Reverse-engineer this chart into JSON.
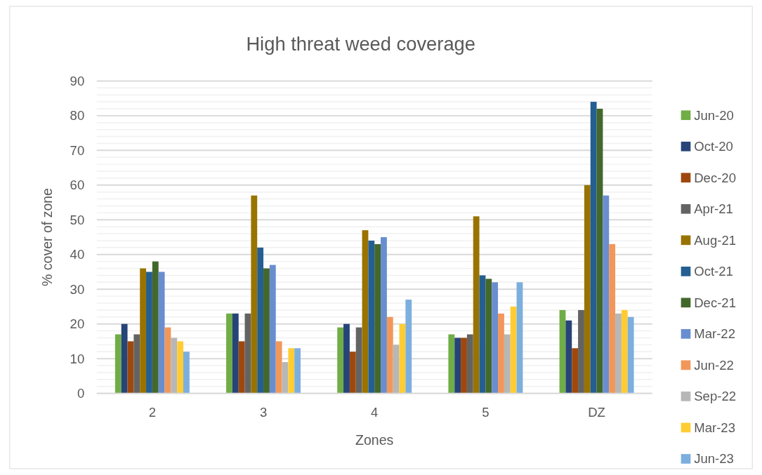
{
  "chart_data": {
    "type": "bar",
    "title": "High threat weed coverage",
    "xlabel": "Zones",
    "ylabel": "% cover of zone",
    "categories": [
      "2",
      "3",
      "4",
      "5",
      "DZ"
    ],
    "series": [
      {
        "name": "Jun-20",
        "color": "#70ad47",
        "values": [
          17,
          23,
          19,
          17,
          24
        ]
      },
      {
        "name": "Oct-20",
        "color": "#264478",
        "values": [
          20,
          23,
          20,
          16,
          21
        ]
      },
      {
        "name": "Dec-20",
        "color": "#9e480e",
        "values": [
          15,
          15,
          12,
          16,
          13
        ]
      },
      {
        "name": "Apr-21",
        "color": "#636363",
        "values": [
          17,
          23,
          19,
          17,
          24
        ]
      },
      {
        "name": "Aug-21",
        "color": "#997300",
        "values": [
          36,
          57,
          47,
          51,
          60
        ]
      },
      {
        "name": "Oct-21",
        "color": "#255e91",
        "values": [
          35,
          42,
          44,
          34,
          84
        ]
      },
      {
        "name": "Dec-21",
        "color": "#43682b",
        "values": [
          38,
          36,
          43,
          33,
          82
        ]
      },
      {
        "name": "Mar-22",
        "color": "#698ed0",
        "values": [
          35,
          37,
          45,
          32,
          57
        ]
      },
      {
        "name": "Jun-22",
        "color": "#f1975a",
        "values": [
          19,
          15,
          22,
          23,
          43
        ]
      },
      {
        "name": "Sep-22",
        "color": "#b7b7b7",
        "values": [
          16,
          9,
          14,
          17,
          23
        ]
      },
      {
        "name": "Mar-23",
        "color": "#ffcd33",
        "values": [
          15,
          13,
          20,
          25,
          24
        ]
      },
      {
        "name": "Jun-23",
        "color": "#7cafdd",
        "values": [
          12,
          13,
          27,
          32,
          22
        ]
      }
    ],
    "ylim": [
      0,
      90
    ],
    "yticks": [
      0,
      {
        "value": 2,
        "label": null
      },
      {
        "value": 4,
        "label": null
      },
      {
        "value": 6,
        "label": null
      },
      {
        "value": 8,
        "label": null
      },
      10,
      {
        "value": 12,
        "label": null
      },
      {
        "value": 14,
        "label": null
      },
      {
        "value": 16,
        "label": null
      },
      {
        "value": 18,
        "label": null
      },
      20,
      {
        "value": 22,
        "label": null
      },
      {
        "value": 24,
        "label": null
      },
      {
        "value": 26,
        "label": null
      },
      {
        "value": 28,
        "label": null
      },
      30,
      {
        "value": 32,
        "label": null
      },
      {
        "value": 34,
        "label": null
      },
      {
        "value": 36,
        "label": null
      },
      {
        "value": 38,
        "label": null
      },
      40,
      {
        "value": 42,
        "label": null
      },
      {
        "value": 44,
        "label": null
      },
      {
        "value": 46,
        "label": null
      },
      {
        "value": 48,
        "label": null
      },
      50,
      {
        "value": 52,
        "label": null
      },
      {
        "value": 54,
        "label": null
      },
      {
        "value": 56,
        "label": null
      },
      {
        "value": 58,
        "label": null
      },
      60,
      {
        "value": 62,
        "label": null
      },
      {
        "value": 64,
        "label": null
      },
      {
        "value": 66,
        "label": null
      },
      {
        "value": 68,
        "label": null
      },
      70,
      {
        "value": 72,
        "label": null
      },
      {
        "value": 74,
        "label": null
      },
      {
        "value": 76,
        "label": null
      },
      {
        "value": 78,
        "label": null
      },
      80,
      {
        "value": 82,
        "label": null
      },
      {
        "value": 84,
        "label": null
      },
      {
        "value": 86,
        "label": null
      },
      {
        "value": 88,
        "label": null
      },
      90
    ],
    "grid": true,
    "legend": "right"
  }
}
